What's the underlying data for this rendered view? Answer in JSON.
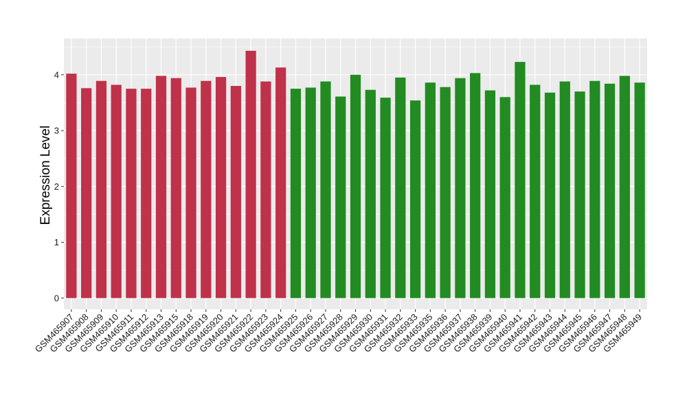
{
  "chart_data": {
    "type": "bar",
    "title": "",
    "xlabel": "",
    "ylabel": "Expression Level",
    "ylim": [
      -0.2,
      4.65
    ],
    "yticks": [
      0,
      1,
      2,
      3,
      4
    ],
    "grid": true,
    "legend": "none",
    "colors": {
      "group1": "#C0314A",
      "group2": "#228B22",
      "panel": "#EBEBEB",
      "grid": "#FFFFFF"
    },
    "categories": [
      "GSM465907",
      "GSM465908",
      "GSM465909",
      "GSM465910",
      "GSM465911",
      "GSM465912",
      "GSM465913",
      "GSM465915",
      "GSM465918",
      "GSM465919",
      "GSM465920",
      "GSM465921",
      "GSM465922",
      "GSM465923",
      "GSM465924",
      "GSM465925",
      "GSM465926",
      "GSM465927",
      "GSM465928",
      "GSM465929",
      "GSM465930",
      "GSM465931",
      "GSM465932",
      "GSM465933",
      "GSM465935",
      "GSM465936",
      "GSM465937",
      "GSM465938",
      "GSM465939",
      "GSM465940",
      "GSM465941",
      "GSM465942",
      "GSM465943",
      "GSM465944",
      "GSM465945",
      "GSM465946",
      "GSM465947",
      "GSM465948",
      "GSM465949"
    ],
    "values": [
      4.02,
      3.76,
      3.89,
      3.82,
      3.75,
      3.75,
      3.98,
      3.94,
      3.77,
      3.89,
      3.96,
      3.8,
      4.43,
      3.88,
      4.13,
      3.75,
      3.77,
      3.88,
      3.61,
      4.0,
      3.73,
      3.59,
      3.95,
      3.54,
      3.86,
      3.78,
      3.94,
      4.03,
      3.72,
      3.6,
      4.23,
      3.82,
      3.68,
      3.88,
      3.7,
      3.89,
      3.84,
      3.98,
      3.86
    ],
    "groups": [
      1,
      1,
      1,
      1,
      1,
      1,
      1,
      1,
      1,
      1,
      1,
      1,
      1,
      1,
      1,
      2,
      2,
      2,
      2,
      2,
      2,
      2,
      2,
      2,
      2,
      2,
      2,
      2,
      2,
      2,
      2,
      2,
      2,
      2,
      2,
      2,
      2,
      2,
      2
    ]
  }
}
